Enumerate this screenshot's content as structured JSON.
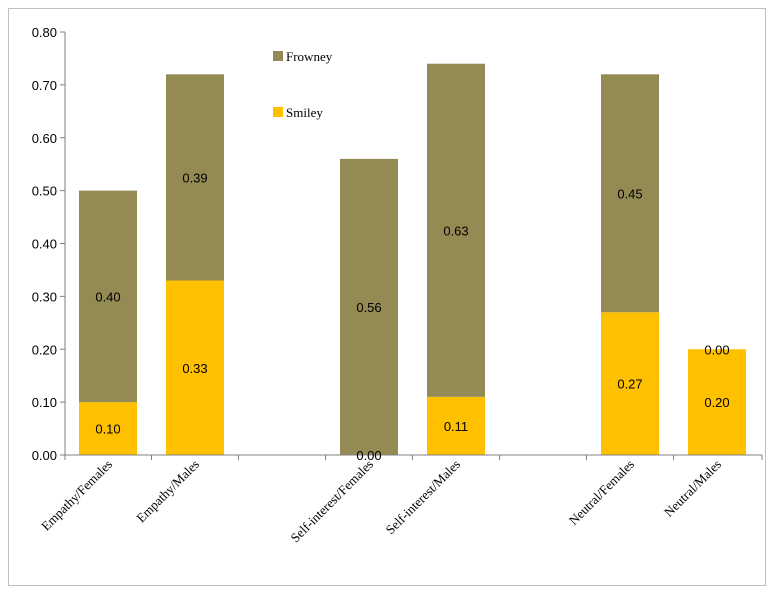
{
  "chart_data": {
    "type": "bar",
    "stacked": true,
    "categories": [
      "Empathy/Females",
      "Empathy/Males",
      "Self-interest/Females",
      "Self-interest/Males",
      "Neutral/Females",
      "Neutral/Males"
    ],
    "series": [
      {
        "name": "Smiley",
        "color": "#ffc000",
        "values": [
          0.1,
          0.33,
          0.0,
          0.11,
          0.27,
          0.2
        ]
      },
      {
        "name": "Frowney",
        "color": "#948a54",
        "values": [
          0.4,
          0.39,
          0.56,
          0.63,
          0.45,
          0.0
        ]
      }
    ],
    "data_labels": {
      "Smiley": [
        "0.10",
        "0.33",
        "0.00",
        "0.11",
        "0.27",
        "0.20"
      ],
      "Frowney": [
        "0.40",
        "0.39",
        "0.56",
        "0.63",
        "0.45",
        "0.00"
      ]
    },
    "yticks": [
      "0.00",
      "0.10",
      "0.20",
      "0.30",
      "0.40",
      "0.50",
      "0.60",
      "0.70",
      "0.80"
    ],
    "ylim": [
      0,
      0.8
    ],
    "grid": false,
    "legend": {
      "position": "top-center",
      "order": [
        "Frowney",
        "Smiley"
      ]
    },
    "title": "",
    "xlabel": "",
    "ylabel": ""
  }
}
